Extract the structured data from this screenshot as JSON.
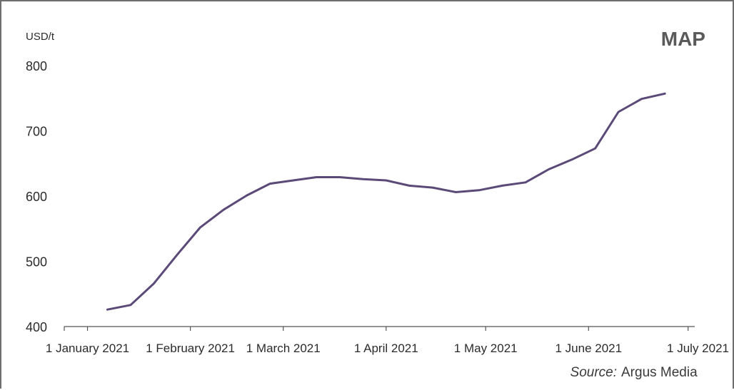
{
  "chart_data": {
    "type": "line",
    "title": "MAP",
    "ylabel": "USD/t",
    "ylim": [
      400,
      800
    ],
    "yticks": [
      400,
      500,
      600,
      700,
      800
    ],
    "xlim": [
      "2020-12-25",
      "2021-07-03"
    ],
    "xticks": [
      {
        "date": "2021-01-01",
        "label": "1 January 2021"
      },
      {
        "date": "2021-02-01",
        "label": "1 February 2021"
      },
      {
        "date": "2021-03-01",
        "label": "1 March 2021"
      },
      {
        "date": "2021-04-01",
        "label": "1 April 2021"
      },
      {
        "date": "2021-05-01",
        "label": "1 May 2021"
      },
      {
        "date": "2021-06-01",
        "label": "1 June 2021"
      },
      {
        "date": "2021-07-01",
        "label": "1 July 2021"
      }
    ],
    "grid": false,
    "series": [
      {
        "color": "#5b4a78",
        "x": [
          "2021-01-07",
          "2021-01-14",
          "2021-01-21",
          "2021-01-28",
          "2021-02-04",
          "2021-02-11",
          "2021-02-18",
          "2021-02-25",
          "2021-03-04",
          "2021-03-11",
          "2021-03-18",
          "2021-03-25",
          "2021-04-01",
          "2021-04-08",
          "2021-04-15",
          "2021-04-22",
          "2021-04-29",
          "2021-05-06",
          "2021-05-13",
          "2021-05-20",
          "2021-05-27",
          "2021-06-03",
          "2021-06-10",
          "2021-06-17",
          "2021-06-24"
        ],
        "y": [
          426,
          433,
          466,
          510,
          552,
          579,
          601,
          619,
          624,
          629,
          629,
          626,
          624,
          616,
          613,
          606,
          609,
          616,
          621,
          641,
          656,
          673,
          729,
          749,
          757
        ]
      }
    ]
  },
  "source": {
    "label": "Source:",
    "value": "Argus Media"
  }
}
